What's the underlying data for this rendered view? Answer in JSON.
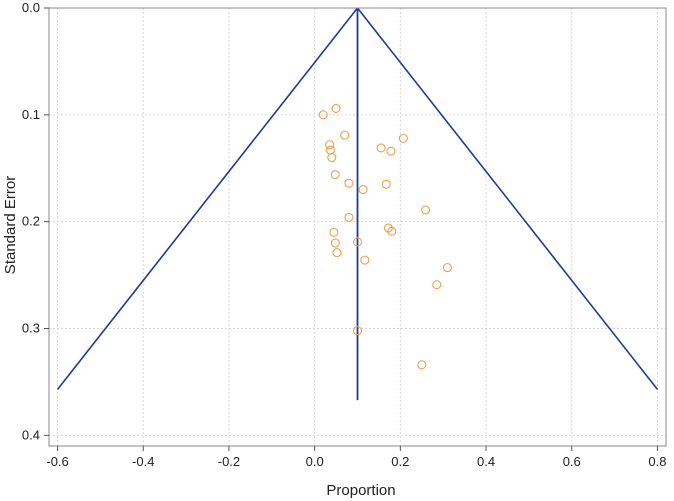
{
  "chart_data": {
    "type": "scatter",
    "title": "",
    "xlabel": "Proportion",
    "ylabel": "Standard Error",
    "xlim": [
      -0.62,
      0.82
    ],
    "ylim": [
      0.0,
      0.41
    ],
    "y_inverted": true,
    "grid": true,
    "x_ticks": [
      {
        "value": -0.6,
        "label": "-0.6"
      },
      {
        "value": -0.4,
        "label": "-0.4"
      },
      {
        "value": -0.2,
        "label": "-0.2"
      },
      {
        "value": 0.0,
        "label": "0.0"
      },
      {
        "value": 0.2,
        "label": "0.2"
      },
      {
        "value": 0.4,
        "label": "0.4"
      },
      {
        "value": 0.6,
        "label": "0.6"
      },
      {
        "value": 0.8,
        "label": "0.8"
      }
    ],
    "y_ticks": [
      {
        "value": 0.0,
        "label": "0.0"
      },
      {
        "value": 0.1,
        "label": "0.1"
      },
      {
        "value": 0.2,
        "label": "0.2"
      },
      {
        "value": 0.3,
        "label": "0.3"
      },
      {
        "value": 0.4,
        "label": "0.4"
      }
    ],
    "funnel": {
      "center": 0.1,
      "apex_se": 0.0,
      "bottom_se": 0.357,
      "left_x": -0.6,
      "right_x": 0.8,
      "center_line_bottom_se": 0.367,
      "color": "#1f3a93"
    },
    "points": {
      "color": "#f0a050",
      "x": [
        0.02,
        0.05,
        0.07,
        0.035,
        0.037,
        0.04,
        0.048,
        0.08,
        0.113,
        0.155,
        0.178,
        0.207,
        0.167,
        0.259,
        0.08,
        0.172,
        0.18,
        0.045,
        0.048,
        0.1,
        0.052,
        0.117,
        0.31,
        0.285,
        0.1,
        0.25
      ],
      "y": [
        0.1,
        0.094,
        0.119,
        0.128,
        0.133,
        0.14,
        0.156,
        0.164,
        0.17,
        0.131,
        0.134,
        0.122,
        0.165,
        0.189,
        0.196,
        0.206,
        0.209,
        0.21,
        0.22,
        0.219,
        0.229,
        0.236,
        0.243,
        0.259,
        0.302,
        0.334
      ]
    }
  }
}
